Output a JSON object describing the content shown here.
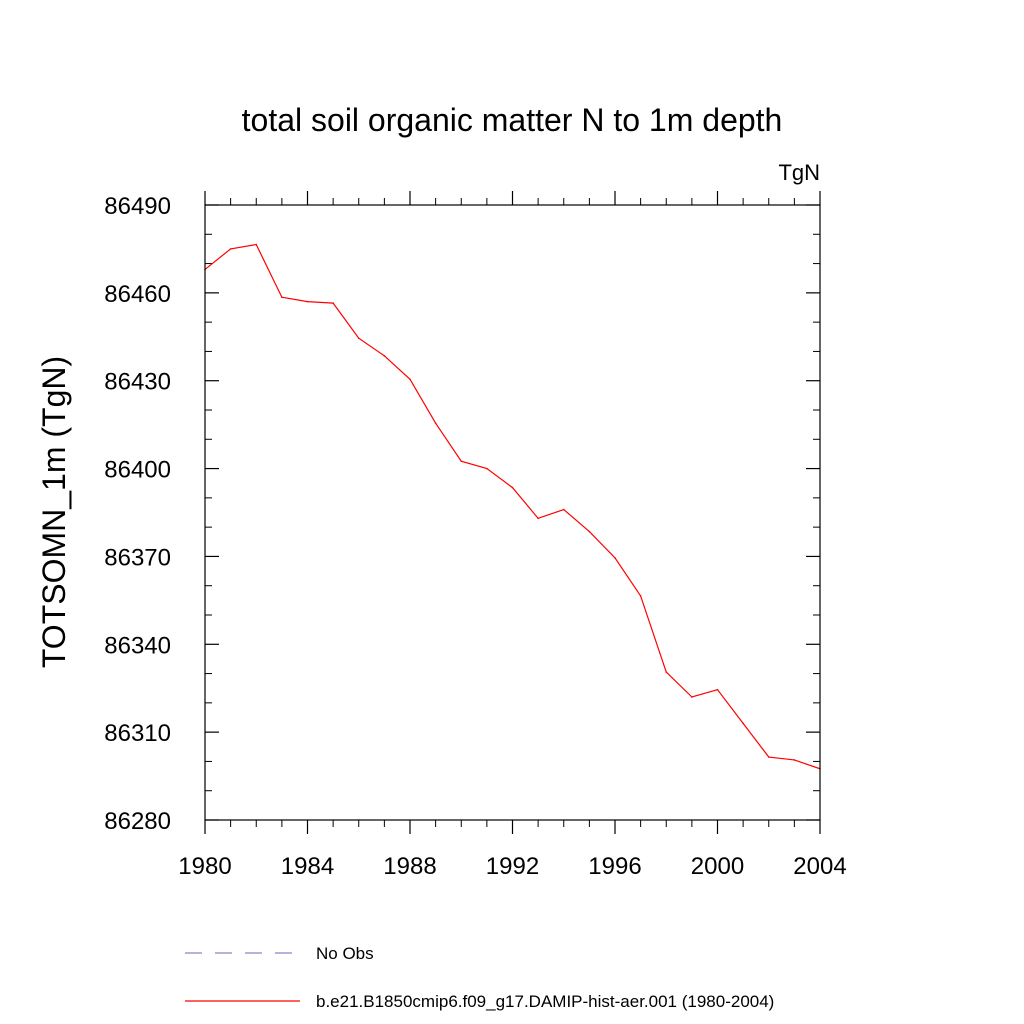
{
  "chart_data": {
    "type": "line",
    "title": "total soil organic matter N to 1m depth",
    "units_label": "TgN",
    "xlabel": "",
    "ylabel": "TOTSOMN_1m  (TgN)",
    "xlim": [
      1980,
      2004
    ],
    "ylim": [
      86280,
      86490
    ],
    "x_ticks": [
      1980,
      1984,
      1988,
      1992,
      1996,
      2000,
      2004
    ],
    "y_ticks": [
      86280,
      86310,
      86340,
      86370,
      86400,
      86430,
      86460,
      86490
    ],
    "x_minor_step": 1,
    "y_minor_step": 10,
    "grid": false,
    "legend_position": "bottom",
    "x": [
      1980,
      1981,
      1982,
      1983,
      1984,
      1985,
      1986,
      1987,
      1988,
      1989,
      1990,
      1991,
      1992,
      1993,
      1994,
      1995,
      1996,
      1997,
      1998,
      1999,
      2000,
      2001,
      2002,
      2003,
      2004
    ],
    "series": [
      {
        "name": "b.e21.B1850cmip6.f09_g17.DAMIP-hist-aer.001 (1980-2004)",
        "color": "#ff0000",
        "dash": "solid",
        "values": [
          86468,
          86475,
          86476.5,
          86458.5,
          86457,
          86456.5,
          86444.5,
          86438.5,
          86430.5,
          86415.5,
          86402.5,
          86400,
          86393.5,
          86383,
          86386,
          86378.5,
          86369.5,
          86356.5,
          86330.5,
          86322,
          86324.5,
          86313,
          86301.5,
          86300.5,
          86297.5
        ]
      }
    ],
    "legend": [
      {
        "label": "No Obs",
        "color": "#8b84c8",
        "dash": "dashed"
      },
      {
        "label": "b.e21.B1850cmip6.f09_g17.DAMIP-hist-aer.001 (1980-2004)",
        "color": "#ff0000",
        "dash": "solid"
      }
    ]
  }
}
